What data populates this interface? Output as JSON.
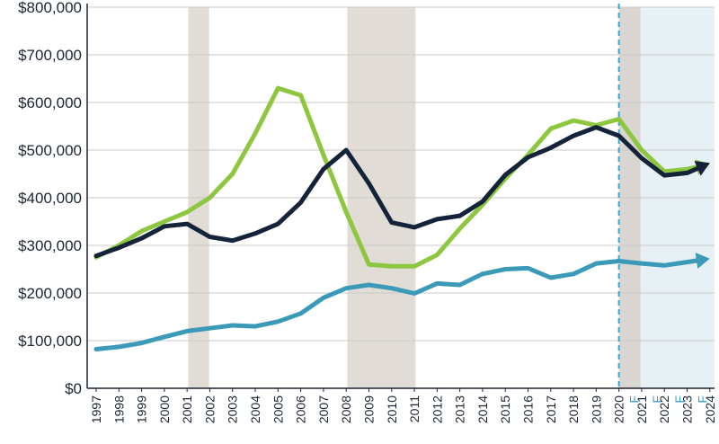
{
  "chart_data": {
    "type": "line",
    "title": "",
    "xlabel": "",
    "ylabel": "",
    "ylim": [
      0,
      800000
    ],
    "y_ticks": [
      0,
      100000,
      200000,
      300000,
      400000,
      500000,
      600000,
      700000,
      800000
    ],
    "y_tick_labels": [
      "$0",
      "$100,000",
      "$200,000",
      "$300,000",
      "$400,000",
      "$500,000",
      "$600,000",
      "$700,000",
      "$800,000"
    ],
    "x": [
      1997,
      1998,
      1999,
      2000,
      2001,
      2002,
      2003,
      2004,
      2005,
      2006,
      2007,
      2008,
      2009,
      2010,
      2011,
      2012,
      2013,
      2014,
      2015,
      2016,
      2017,
      2018,
      2019,
      2020,
      2021,
      2022,
      2023,
      2024
    ],
    "x_tick_labels": [
      "1997",
      "1998",
      "1999",
      "2000",
      "2001",
      "2002",
      "2003",
      "2004",
      "2005",
      "2006",
      "2007",
      "2008",
      "2009",
      "2010",
      "2011",
      "2012",
      "2013",
      "2014",
      "2015",
      "2016",
      "2017",
      "2018",
      "2019",
      "2020",
      "2021",
      "2022",
      "2023",
      "2024"
    ],
    "forecast_marker": "F",
    "forecast_from": 2020,
    "recession_bands": [
      [
        2001,
        2002
      ],
      [
        2008,
        2011
      ]
    ],
    "forecast_region": [
      2020,
      2025
    ],
    "grid": true,
    "series": [
      {
        "name": "green",
        "color": "#8dc63f",
        "values": [
          275000,
          300000,
          330000,
          350000,
          370000,
          400000,
          450000,
          535000,
          630000,
          615000,
          490000,
          370000,
          260000,
          256000,
          256000,
          280000,
          335000,
          385000,
          440000,
          490000,
          545000,
          562000,
          552000,
          565000,
          500000,
          455000,
          460000,
          470000
        ]
      },
      {
        "name": "navy",
        "color": "#15233a",
        "values": [
          278000,
          295000,
          315000,
          340000,
          345000,
          318000,
          310000,
          325000,
          345000,
          390000,
          460000,
          500000,
          430000,
          348000,
          338000,
          355000,
          362000,
          392000,
          448000,
          485000,
          505000,
          530000,
          548000,
          530000,
          483000,
          447000,
          452000,
          473000
        ]
      },
      {
        "name": "teal",
        "color": "#3a9ab8",
        "values": [
          82000,
          87000,
          95000,
          108000,
          120000,
          126000,
          132000,
          130000,
          140000,
          157000,
          190000,
          210000,
          217000,
          210000,
          199000,
          220000,
          217000,
          240000,
          250000,
          252000,
          232000,
          240000,
          262000,
          267000,
          262000,
          258000,
          265000,
          272000
        ]
      }
    ],
    "colors": {
      "band": "#e1dcd6",
      "forecast_band": "#e7f1f5",
      "forecast_band_overlap": "#d9d6d2",
      "forecast_line": "#3aa4d4",
      "forecast_label": "#3a9ec9",
      "grid": "#c9c9c9",
      "axis": "#1b2533"
    }
  }
}
